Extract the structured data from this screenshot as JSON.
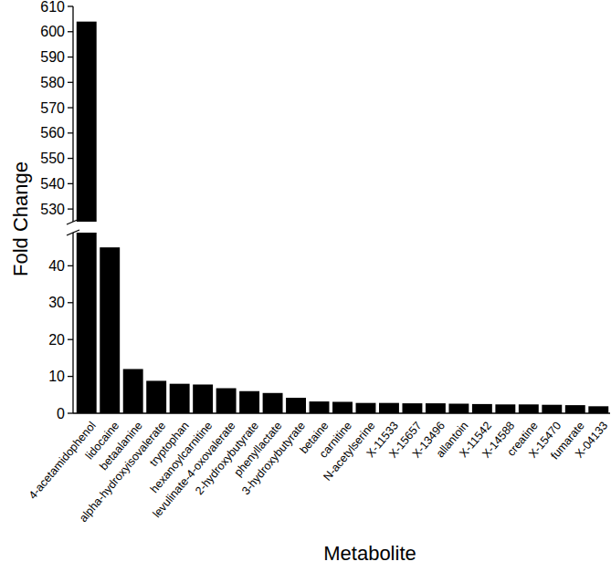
{
  "chart_data": {
    "type": "bar",
    "xlabel": "Metabolite",
    "ylabel": "Fold Change",
    "categories": [
      "4-acetamidophenol",
      "lidocaine",
      "betaalanine",
      "alpha-hydroxyisovalerate",
      "tryptophan",
      "hexanoylcarnitine",
      "levulinate-4-oxovalerate",
      "2-hydroxybutyrate",
      "phenyllactate",
      "3-hydroxybutyrate",
      "betaine",
      "carnitine",
      "N-acetylserine",
      "X-11533",
      "X-15657",
      "X-13496",
      "allantoin",
      "X-11542",
      "X-14588",
      "creatine",
      "X-15470",
      "fumarate",
      "X-04133"
    ],
    "values": [
      604,
      45,
      12,
      8.8,
      8,
      7.8,
      6.8,
      6,
      5.5,
      4.2,
      3.2,
      3.1,
      2.8,
      2.8,
      2.7,
      2.7,
      2.6,
      2.5,
      2.4,
      2.4,
      2.3,
      2.2,
      1.9
    ],
    "color": "#000000",
    "ylim": [
      0,
      610
    ],
    "ybreak": [
      49,
      525
    ],
    "yticks": [
      0,
      10,
      20,
      30,
      40,
      530,
      540,
      550,
      560,
      570,
      580,
      590,
      600,
      610
    ]
  }
}
